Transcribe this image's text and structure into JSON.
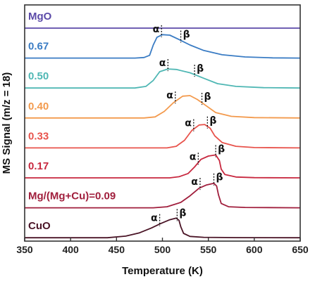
{
  "chart_data": {
    "type": "line",
    "xlabel": "Temperature (K)",
    "ylabel": "MS Signal (m/z = 18)",
    "xlim": [
      350,
      650
    ],
    "xticks": [
      350,
      400,
      450,
      500,
      550,
      600,
      650
    ],
    "grid": false,
    "legend": "none",
    "series": [
      {
        "name": "MgO",
        "color": "#5b4aa8",
        "points": [
          [
            350,
            0.0
          ],
          [
            650,
            0.0
          ]
        ],
        "alpha_x": null,
        "beta_x": null
      },
      {
        "name": "0.67",
        "color": "#3a7cc4",
        "points": [
          [
            350,
            0
          ],
          [
            470,
            0
          ],
          [
            480,
            0.5
          ],
          [
            486,
            2.5
          ],
          [
            490,
            12
          ],
          [
            494,
            19
          ],
          [
            500,
            21.5
          ],
          [
            508,
            21
          ],
          [
            518,
            17
          ],
          [
            530,
            12
          ],
          [
            545,
            7
          ],
          [
            565,
            3
          ],
          [
            590,
            1
          ],
          [
            620,
            0.2
          ],
          [
            650,
            0
          ]
        ],
        "alpha_x": 499,
        "beta_x": 520
      },
      {
        "name": "0.50",
        "color": "#4fb7b4",
        "points": [
          [
            350,
            0
          ],
          [
            470,
            0
          ],
          [
            482,
            1.5
          ],
          [
            490,
            7
          ],
          [
            497,
            15
          ],
          [
            506,
            17.5
          ],
          [
            515,
            17
          ],
          [
            530,
            14
          ],
          [
            545,
            9
          ],
          [
            560,
            4
          ],
          [
            580,
            1.5
          ],
          [
            610,
            0.3
          ],
          [
            650,
            0
          ]
        ],
        "alpha_x": 506,
        "beta_x": 535
      },
      {
        "name": "0.40",
        "color": "#f39a4d",
        "points": [
          [
            350,
            0
          ],
          [
            480,
            0
          ],
          [
            492,
            1
          ],
          [
            502,
            6
          ],
          [
            512,
            14
          ],
          [
            522,
            20
          ],
          [
            530,
            20.5
          ],
          [
            538,
            17
          ],
          [
            548,
            11
          ],
          [
            558,
            5
          ],
          [
            575,
            1.5
          ],
          [
            600,
            0.3
          ],
          [
            650,
            0
          ]
        ],
        "alpha_x": 514,
        "beta_x": 543
      },
      {
        "name": "0.33",
        "color": "#e8534c",
        "points": [
          [
            350,
            0
          ],
          [
            505,
            0
          ],
          [
            515,
            1.5
          ],
          [
            524,
            7
          ],
          [
            532,
            16
          ],
          [
            540,
            21
          ],
          [
            546,
            21.5
          ],
          [
            552,
            18
          ],
          [
            557,
            11
          ],
          [
            565,
            5
          ],
          [
            580,
            1.5
          ],
          [
            600,
            0.3
          ],
          [
            650,
            0
          ]
        ],
        "alpha_x": 534,
        "beta_x": 549
      },
      {
        "name": "0.17",
        "color": "#c8283f",
        "points": [
          [
            350,
            0
          ],
          [
            508,
            0
          ],
          [
            518,
            1
          ],
          [
            528,
            4
          ],
          [
            535,
            10
          ],
          [
            542,
            17
          ],
          [
            550,
            20
          ],
          [
            558,
            21
          ],
          [
            562,
            16
          ],
          [
            564,
            8
          ],
          [
            568,
            3
          ],
          [
            580,
            0.8
          ],
          [
            600,
            0.2
          ],
          [
            650,
            0
          ]
        ],
        "alpha_x": 539,
        "beta_x": 558
      },
      {
        "name": "Mg/(Mg+Cu)=0.09",
        "color": "#a01e3c",
        "points": [
          [
            350,
            0
          ],
          [
            490,
            0
          ],
          [
            505,
            1
          ],
          [
            520,
            5
          ],
          [
            530,
            11
          ],
          [
            540,
            18
          ],
          [
            548,
            21
          ],
          [
            556,
            22.5
          ],
          [
            559,
            20
          ],
          [
            561,
            12
          ],
          [
            564,
            4
          ],
          [
            572,
            1
          ],
          [
            590,
            0.3
          ],
          [
            650,
            0
          ]
        ],
        "alpha_x": 541,
        "beta_x": 556
      },
      {
        "name": "CuO",
        "color": "#4a1426",
        "points": [
          [
            350,
            0
          ],
          [
            440,
            0
          ],
          [
            460,
            1.5
          ],
          [
            475,
            4.5
          ],
          [
            488,
            9
          ],
          [
            498,
            13
          ],
          [
            508,
            16.5
          ],
          [
            515,
            18
          ],
          [
            518,
            16
          ],
          [
            520,
            10
          ],
          [
            523,
            4
          ],
          [
            530,
            1.2
          ],
          [
            545,
            0.4
          ],
          [
            580,
            0.1
          ],
          [
            650,
            0
          ]
        ],
        "alpha_x": 497,
        "beta_x": 516
      }
    ],
    "annotations": {
      "alpha": "α",
      "beta": "β"
    }
  }
}
